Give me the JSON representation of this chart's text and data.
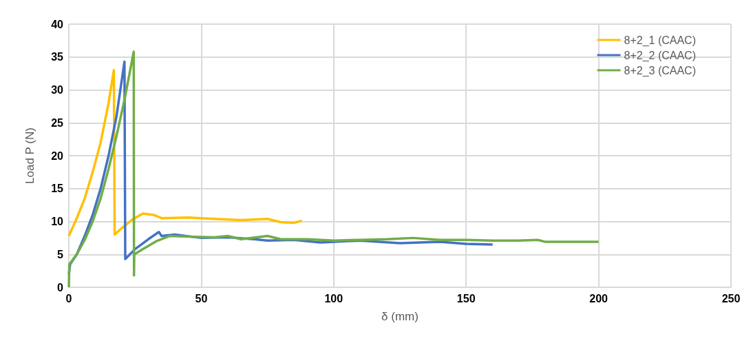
{
  "chart_data": {
    "type": "line",
    "xlabel": "δ (mm)",
    "ylabel": "Load P (N)",
    "xlim": [
      0,
      250
    ],
    "xticks": [
      0,
      50,
      100,
      150,
      200,
      250
    ],
    "ylim": [
      0,
      40
    ],
    "yticks": [
      0,
      5,
      10,
      15,
      20,
      25,
      30,
      35,
      40
    ],
    "grid": true,
    "legend": "top right",
    "marker": "none",
    "line_style": "solid",
    "series": [
      {
        "name": "8+2_1 (CAAC)",
        "color": "#ffc000",
        "x": [
          0,
          3,
          6,
          9,
          12,
          15,
          17,
          17.3,
          20,
          24,
          28,
          32,
          35,
          45,
          55,
          65,
          75,
          80,
          85,
          88
        ],
        "values": [
          7.8,
          10.5,
          13.5,
          17.5,
          22,
          28,
          33,
          8,
          9,
          10.3,
          11.2,
          11,
          10.5,
          10.6,
          10.4,
          10.2,
          10.4,
          9.9,
          9.8,
          10.1
        ]
      },
      {
        "name": "8+2_2 (CAAC)",
        "color": "#4472c4",
        "x": [
          0,
          0.5,
          3,
          6,
          9,
          12,
          15,
          18,
          21,
          21.3,
          25,
          30,
          34,
          35,
          40,
          50,
          60,
          70,
          75,
          85,
          95,
          110,
          125,
          140,
          150,
          160
        ],
        "values": [
          2,
          3.5,
          5,
          7.8,
          11,
          15,
          20,
          26,
          34.3,
          4.3,
          5.8,
          7.3,
          8.4,
          7.8,
          8,
          7.5,
          7.6,
          7.3,
          7.1,
          7.2,
          6.8,
          7.1,
          6.7,
          6.9,
          6.6,
          6.5
        ]
      },
      {
        "name": "8+2_3 (CAAC)",
        "color": "#70ad47",
        "x": [
          0,
          0.2,
          3,
          6,
          9,
          12,
          15,
          18,
          21,
          24.5,
          24.6,
          24.7,
          28,
          33,
          38,
          45,
          55,
          60,
          65,
          75,
          80,
          90,
          100,
          110,
          120,
          130,
          140,
          150,
          160,
          170,
          177,
          180,
          190,
          200
        ],
        "values": [
          0,
          3.5,
          5,
          7.2,
          10,
          13.5,
          18,
          23,
          28.5,
          35.8,
          1.8,
          5,
          5.8,
          7,
          7.8,
          7.7,
          7.6,
          7.8,
          7.3,
          7.8,
          7.3,
          7.3,
          7.1,
          7.2,
          7.3,
          7.5,
          7.2,
          7.2,
          7.1,
          7.1,
          7.2,
          6.9,
          6.9,
          6.9
        ]
      }
    ]
  }
}
